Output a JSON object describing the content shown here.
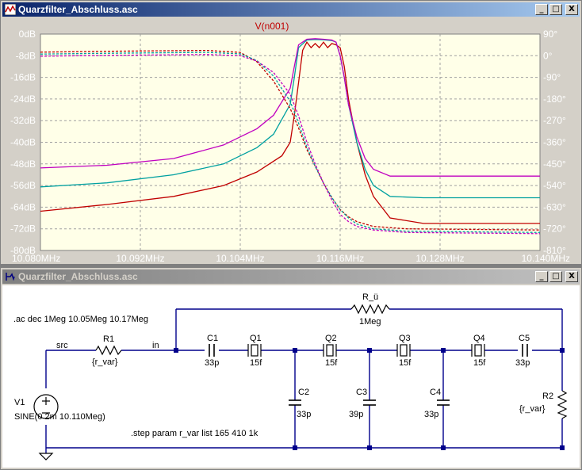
{
  "plot_window": {
    "title": "Quarzfilter_Abschluss.asc",
    "trace_title": "V(n001)",
    "buttons": {
      "minimize": "_",
      "maximize": "□",
      "close": "X"
    }
  },
  "schematic_window": {
    "title": "Quarzfilter_Abschluss.asc",
    "buttons": {
      "minimize": "_",
      "maximize": "□",
      "close": "X"
    },
    "directives": {
      "ac": ".ac dec 1Meg 10.05Meg 10.17Meg",
      "step": ".step param r_var list 165 410 1k"
    },
    "nets": {
      "src": "src",
      "in": "in"
    },
    "components": {
      "r_u": {
        "name": "R_ü",
        "value": "1Meg"
      },
      "r1": {
        "name": "R1",
        "value": "{r_var}"
      },
      "r2": {
        "name": "R2",
        "value": "{r_var}"
      },
      "v1": {
        "name": "V1",
        "value": "SINE(0 2m 10.110Meg)"
      },
      "c1": {
        "name": "C1",
        "value": "33p"
      },
      "c2": {
        "name": "C2",
        "value": "33p"
      },
      "c3": {
        "name": "C3",
        "value": "39p"
      },
      "c4": {
        "name": "C4",
        "value": "33p"
      },
      "c5": {
        "name": "C5",
        "value": "33p"
      },
      "q1": {
        "name": "Q1",
        "value": "15f"
      },
      "q2": {
        "name": "Q2",
        "value": "15f"
      },
      "q3": {
        "name": "Q3",
        "value": "15f"
      },
      "q4": {
        "name": "Q4",
        "value": "15f"
      }
    }
  },
  "chart_data": {
    "type": "line",
    "title": "V(n001)",
    "xlabel": "",
    "ylabel": "",
    "x_ticks": [
      "10.080MHz",
      "10.092MHz",
      "10.104MHz",
      "10.116MHz",
      "10.128MHz",
      "10.140MHz"
    ],
    "xlim": [
      10.08,
      10.14
    ],
    "y_ticks": [
      "0dB",
      "-8dB",
      "-16dB",
      "-24dB",
      "-32dB",
      "-40dB",
      "-48dB",
      "-56dB",
      "-64dB",
      "-72dB",
      "-80dB"
    ],
    "ylim": [
      -80,
      0
    ],
    "y2_ticks": [
      "90°",
      "0°",
      "-90°",
      "-180°",
      "-270°",
      "-360°",
      "-450°",
      "-540°",
      "-630°",
      "-720°",
      "-810°"
    ],
    "y2lim": [
      -810,
      90
    ],
    "grid": true,
    "colors": {
      "plot_bg": "#ffffe8",
      "grid": "#a0a0a0",
      "frame": "#808080",
      "tick_text": "#ffffff"
    },
    "series": [
      {
        "name": "",
        "kind": "magnitude",
        "color": "#c00000",
        "x": [
          10.08,
          10.088,
          10.096,
          10.102,
          10.106,
          10.109,
          10.11,
          10.1105,
          10.111,
          10.1115,
          10.112,
          10.1125,
          10.113,
          10.1135,
          10.114,
          10.1145,
          10.115,
          10.1155,
          10.116,
          10.1165,
          10.117,
          10.118,
          10.119,
          10.12,
          10.122,
          10.126,
          10.14
        ],
        "y": [
          -65.5,
          -63,
          -60,
          -56,
          -51,
          -45,
          -40,
          -30,
          -18,
          -6,
          -3,
          -5,
          -3.5,
          -5,
          -3,
          -5,
          -3.5,
          -4,
          -5,
          -12,
          -24,
          -40,
          -52,
          -60,
          -68,
          -70,
          -70
        ]
      },
      {
        "name": "",
        "kind": "magnitude",
        "color": "#00a0a0",
        "x": [
          10.08,
          10.088,
          10.096,
          10.102,
          10.106,
          10.108,
          10.11,
          10.1105,
          10.111,
          10.112,
          10.113,
          10.114,
          10.115,
          10.1155,
          10.116,
          10.1165,
          10.117,
          10.118,
          10.119,
          10.12,
          10.122,
          10.126,
          10.14
        ],
        "y": [
          -56.5,
          -55,
          -52,
          -48,
          -42,
          -37,
          -26,
          -16,
          -5,
          -2.2,
          -2.0,
          -2.1,
          -2.4,
          -3,
          -8,
          -16,
          -26,
          -40,
          -50,
          -56,
          -60,
          -60.5,
          -60.5
        ]
      },
      {
        "name": "",
        "kind": "magnitude",
        "color": "#c000c0",
        "x": [
          10.08,
          10.088,
          10.096,
          10.102,
          10.106,
          10.108,
          10.11,
          10.1105,
          10.111,
          10.112,
          10.113,
          10.114,
          10.115,
          10.1155,
          10.116,
          10.1165,
          10.117,
          10.118,
          10.119,
          10.12,
          10.122,
          10.126,
          10.14
        ],
        "y": [
          -49.5,
          -48.5,
          -46,
          -41,
          -35,
          -30,
          -20,
          -12,
          -4,
          -1.9,
          -1.7,
          -1.9,
          -2.2,
          -3,
          -8,
          -16,
          -26,
          -38,
          -46,
          -50,
          -52.5,
          -52.5,
          -52.5
        ]
      },
      {
        "name": "",
        "kind": "phase",
        "color": "#c00000",
        "x": [
          10.08,
          10.09,
          10.1,
          10.104,
          10.106,
          10.108,
          10.11,
          10.111,
          10.112,
          10.113,
          10.114,
          10.115,
          10.116,
          10.117,
          10.118,
          10.12,
          10.124,
          10.14
        ],
        "y": [
          15,
          19,
          22,
          14,
          -25,
          -105,
          -220,
          -300,
          -390,
          -460,
          -530,
          -590,
          -640,
          -670,
          -690,
          -710,
          -720,
          -725
        ]
      },
      {
        "name": "",
        "kind": "phase",
        "color": "#00a0a0",
        "x": [
          10.08,
          10.09,
          10.1,
          10.104,
          10.106,
          10.108,
          10.11,
          10.111,
          10.112,
          10.113,
          10.114,
          10.115,
          10.116,
          10.117,
          10.118,
          10.12,
          10.124,
          10.14
        ],
        "y": [
          7,
          11,
          14,
          8,
          -20,
          -85,
          -190,
          -280,
          -380,
          -460,
          -530,
          -590,
          -640,
          -675,
          -700,
          -720,
          -730,
          -735
        ]
      },
      {
        "name": "",
        "kind": "phase",
        "color": "#c000c0",
        "x": [
          10.08,
          10.09,
          10.1,
          10.104,
          10.106,
          10.108,
          10.11,
          10.111,
          10.112,
          10.113,
          10.114,
          10.115,
          10.116,
          10.117,
          10.118,
          10.12,
          10.124,
          10.14
        ],
        "y": [
          -2,
          2,
          5,
          0,
          -22,
          -70,
          -160,
          -250,
          -360,
          -450,
          -530,
          -600,
          -660,
          -690,
          -710,
          -725,
          -735,
          -740
        ]
      }
    ]
  }
}
